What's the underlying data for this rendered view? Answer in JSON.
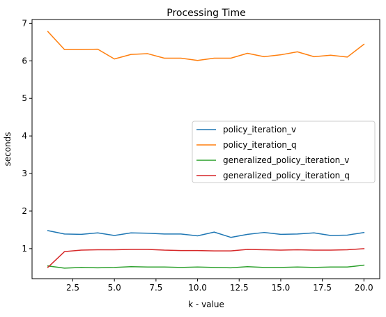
{
  "chart_data": {
    "type": "line",
    "title": "Processing Time",
    "xlabel": "k - value",
    "ylabel": "seconds",
    "xlim": [
      0.05,
      20.95
    ],
    "ylim": [
      0.2,
      7.1
    ],
    "xticks": [
      2.5,
      5.0,
      7.5,
      10.0,
      12.5,
      15.0,
      17.5,
      20.0
    ],
    "xtick_labels": [
      "2.5",
      "5.0",
      "7.5",
      "10.0",
      "12.5",
      "15.0",
      "17.5",
      "20.0"
    ],
    "yticks": [
      1,
      2,
      3,
      4,
      5,
      6,
      7
    ],
    "ytick_labels": [
      "1",
      "2",
      "3",
      "4",
      "5",
      "6",
      "7"
    ],
    "grid": false,
    "legend_position": "center-right",
    "x": [
      1,
      2,
      3,
      4,
      5,
      6,
      7,
      8,
      9,
      10,
      11,
      12,
      13,
      14,
      15,
      16,
      17,
      18,
      19,
      20
    ],
    "series": [
      {
        "name": "policy_iteration_v",
        "color": "#1f77b4",
        "values": [
          1.48,
          1.39,
          1.38,
          1.42,
          1.35,
          1.42,
          1.41,
          1.39,
          1.39,
          1.34,
          1.44,
          1.3,
          1.38,
          1.43,
          1.38,
          1.39,
          1.42,
          1.35,
          1.36,
          1.43
        ]
      },
      {
        "name": "policy_iteration_q",
        "color": "#ff7f0e",
        "values": [
          6.78,
          6.3,
          6.3,
          6.31,
          6.05,
          6.17,
          6.19,
          6.07,
          6.07,
          6.01,
          6.07,
          6.07,
          6.2,
          6.11,
          6.16,
          6.24,
          6.11,
          6.15,
          6.1,
          6.44
        ]
      },
      {
        "name": "generalized_policy_iteration_v",
        "color": "#2ca02c",
        "values": [
          0.54,
          0.48,
          0.5,
          0.49,
          0.5,
          0.52,
          0.51,
          0.51,
          0.5,
          0.51,
          0.5,
          0.49,
          0.52,
          0.5,
          0.5,
          0.51,
          0.5,
          0.51,
          0.51,
          0.56
        ]
      },
      {
        "name": "generalized_policy_iteration_q",
        "color": "#d62728",
        "values": [
          0.5,
          0.92,
          0.96,
          0.97,
          0.97,
          0.98,
          0.98,
          0.96,
          0.95,
          0.95,
          0.94,
          0.94,
          0.98,
          0.97,
          0.96,
          0.97,
          0.96,
          0.96,
          0.97,
          1.0
        ]
      }
    ]
  }
}
